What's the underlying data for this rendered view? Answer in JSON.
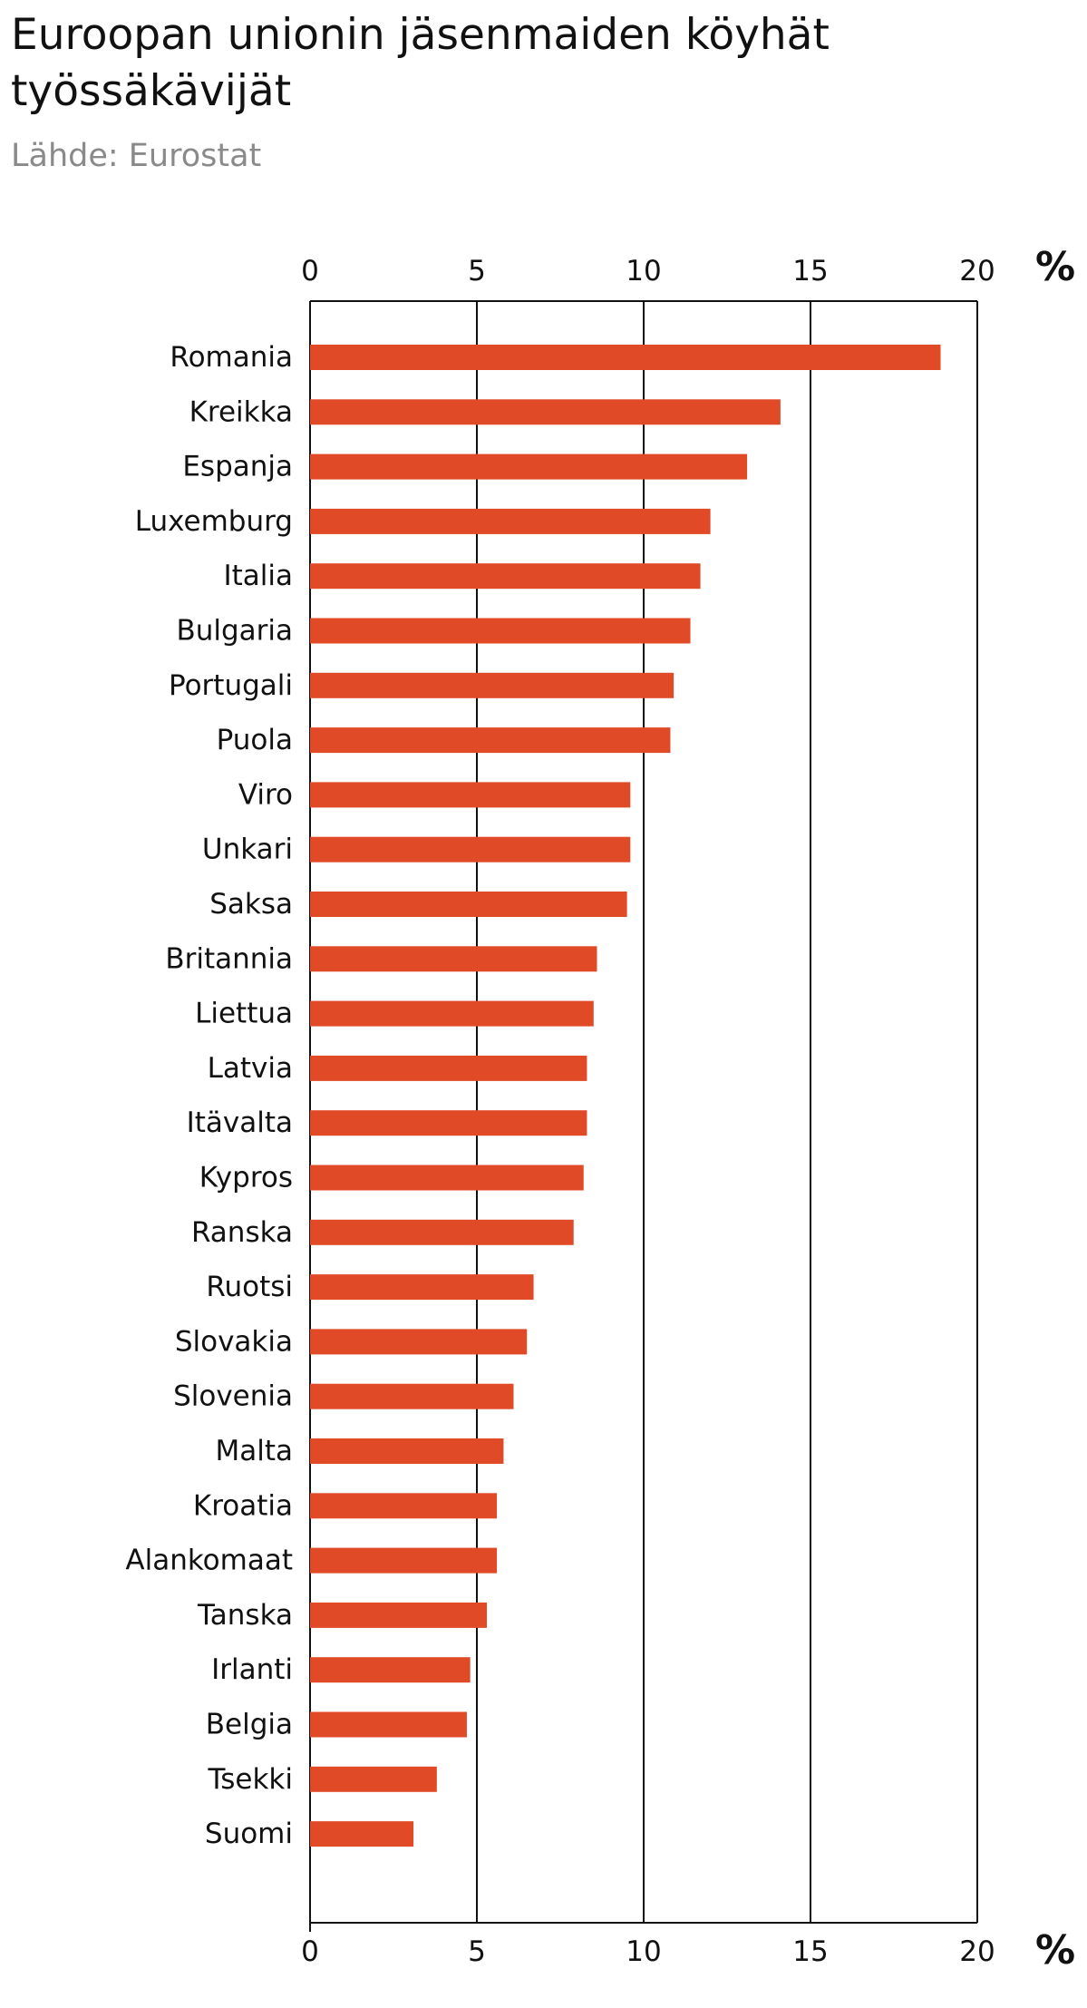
{
  "chart_data": {
    "type": "bar",
    "orientation": "horizontal",
    "title": "Euroopan unionin jäsenmaiden köyhät työssäkävijät",
    "source": "Lähde: Eurostat",
    "unit": "%",
    "xlim": [
      0,
      20
    ],
    "ticks": [
      0,
      5,
      10,
      15,
      20
    ],
    "tick_labels": [
      "0",
      "5",
      "10",
      "15",
      "20"
    ],
    "grid": true,
    "bar_color": "#e04a26",
    "categories": [
      "Romania",
      "Kreikka",
      "Espanja",
      "Luxemburg",
      "Italia",
      "Bulgaria",
      "Portugali",
      "Puola",
      "Viro",
      "Unkari",
      "Saksa",
      "Britannia",
      "Liettua",
      "Latvia",
      "Itävalta",
      "Kypros",
      "Ranska",
      "Ruotsi",
      "Slovakia",
      "Slovenia",
      "Malta",
      "Kroatia",
      "Alankomaat",
      "Tanska",
      "Irlanti",
      "Belgia",
      "Tsekki",
      "Suomi"
    ],
    "values": [
      18.9,
      14.1,
      13.1,
      12.0,
      11.7,
      11.4,
      10.9,
      10.8,
      9.6,
      9.6,
      9.5,
      8.6,
      8.5,
      8.3,
      8.3,
      8.2,
      7.9,
      6.7,
      6.5,
      6.1,
      5.8,
      5.6,
      5.6,
      5.3,
      4.8,
      4.7,
      3.8,
      3.1
    ]
  }
}
